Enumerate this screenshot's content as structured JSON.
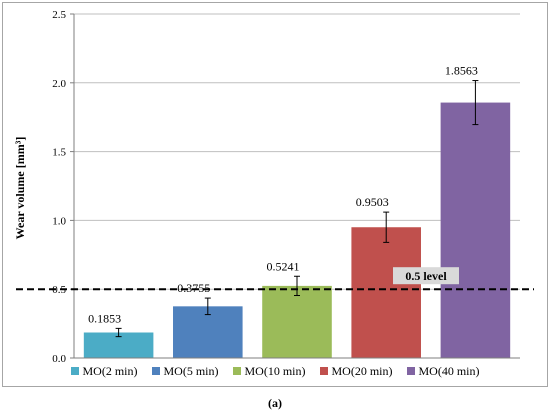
{
  "chart_data": {
    "type": "bar",
    "categories": [
      "MO(2 min)",
      "MO(5 min)",
      "MO(10 min)",
      "MO(20 min)",
      "MO(40 min)"
    ],
    "values": [
      0.1853,
      0.3755,
      0.5241,
      0.9503,
      1.8563
    ],
    "data_labels": [
      "0.1853",
      "0.3755",
      "0.5241",
      "0.9503",
      "1.8563"
    ],
    "error": [
      0.03,
      0.06,
      0.07,
      0.11,
      0.16
    ],
    "colors": [
      "#4bacc6",
      "#4f81bd",
      "#9bbb59",
      "#c0504d",
      "#8064a2"
    ],
    "ylabel": "Wear volume [mm³]",
    "ylim": [
      0,
      2.5
    ],
    "yticks": [
      "0.0",
      "0.5",
      "1.0",
      "1.5",
      "2.0",
      "2.5"
    ],
    "ytick_values": [
      0,
      0.5,
      1.0,
      1.5,
      2.0,
      2.5
    ],
    "reference_line": {
      "value": 0.5,
      "label": "0.5 level",
      "style": "dashed"
    },
    "grid": "horizontal",
    "legend_position": "bottom"
  },
  "caption": "(a)"
}
